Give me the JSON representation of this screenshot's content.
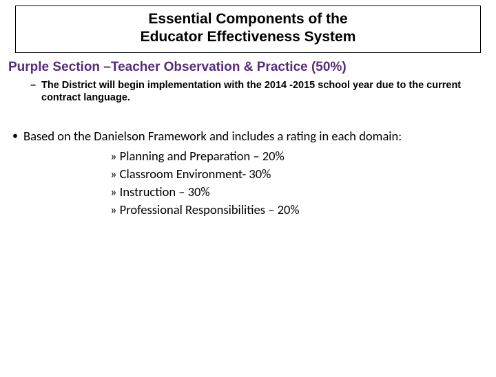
{
  "title": {
    "line1": "Essential Components of the",
    "line2": "Educator Effectiveness System"
  },
  "section_heading": "Purple Section –Teacher Observation & Practice (50%)",
  "sub_note": {
    "dash": "–",
    "text": "The District will begin implementation with the  2014 -2015 school year due to the current contract language."
  },
  "based_on": {
    "bullet": "•",
    "text": "Based on the Danielson Framework and includes a rating in each domain:"
  },
  "domains": [
    "» Planning and Preparation – 20%",
    "» Classroom Environment- 30%",
    "» Instruction – 30%",
    "» Professional Responsibilities – 20%"
  ],
  "colors": {
    "heading_purple": "#5a2a7a",
    "text_black": "#000000",
    "background": "#ffffff",
    "border": "#000000"
  }
}
